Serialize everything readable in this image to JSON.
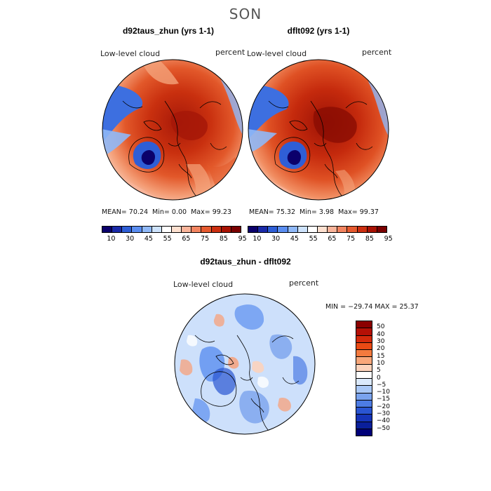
{
  "season": "SON",
  "panels": [
    {
      "title": "d92taus_zhun (yrs 1-1)",
      "variable": "Low-level cloud",
      "unit": "percent",
      "stats": {
        "mean_label": "MEAN=",
        "mean": "70.24",
        "min_label": "Min=",
        "min": "0.00",
        "max_label": "Max=",
        "max": "99.23"
      }
    },
    {
      "title": "dflt092 (yrs 1-1)",
      "variable": "Low-level cloud",
      "unit": "percent",
      "stats": {
        "mean_label": "MEAN=",
        "mean": "75.32",
        "min_label": "Min=",
        "min": "3.98",
        "max_label": "Max=",
        "max": "99.37"
      }
    },
    {
      "title": "d92taus_zhun - dflt092",
      "variable": "Low-level cloud",
      "unit": "percent",
      "stats_text": "MIN = −29.74 MAX =  25.37"
    }
  ],
  "colorbar_main": {
    "colors": [
      "#0b006b",
      "#1a2aa8",
      "#2e5ed6",
      "#5a8df0",
      "#8fb8f7",
      "#cde2fb",
      "#ffffff",
      "#fde0cf",
      "#f9b49a",
      "#f28460",
      "#e65a2f",
      "#cc2f10",
      "#a81204",
      "#7a0000"
    ],
    "tick_labels": [
      "10",
      "30",
      "45",
      "55",
      "65",
      "75",
      "85",
      "95"
    ]
  },
  "colorbar_diff": {
    "colors": [
      "#8b0000",
      "#b51006",
      "#d42a0c",
      "#ea4a14",
      "#f47a3e",
      "#f9a77a",
      "#fcd3bc",
      "#ffffff",
      "#dbe9fb",
      "#aac8f6",
      "#7aa3ee",
      "#4d7ce4",
      "#2a55d2",
      "#1634b8",
      "#0a1f9a",
      "#000078"
    ],
    "tick_labels": [
      "50",
      "40",
      "30",
      "20",
      "15",
      "10",
      "5",
      "0",
      "−5",
      "−10",
      "−15",
      "−20",
      "−30",
      "−40",
      "−50"
    ]
  },
  "map_colors": {
    "ocean_edge": "#3d6fe0",
    "main_fill": "#d9441a",
    "dark_core": "#a61808",
    "light_ring": "#f4a27a",
    "greenland_blue": "#2f5ed6",
    "diff_base": "#cde0fb",
    "diff_blue": "#5b8ff0",
    "diff_red": "#f5a583"
  }
}
